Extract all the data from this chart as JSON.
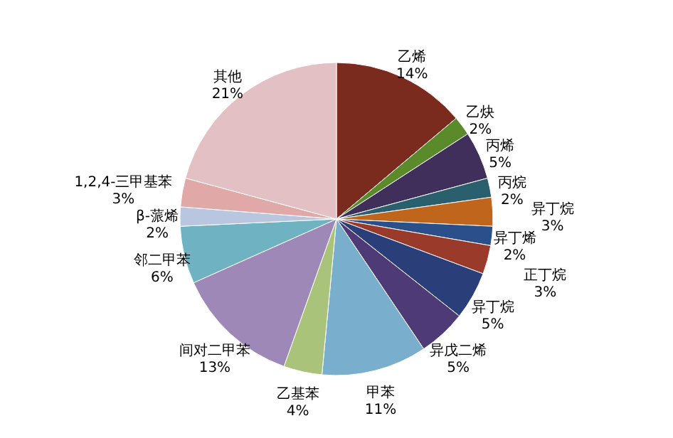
{
  "chart_data": {
    "type": "pie",
    "categories": [
      "乙烯",
      "乙炔",
      "丙烯",
      "丙烷",
      "异丁烷",
      "异丁烯",
      "正丁烷",
      "异丁烷",
      "异戊二烯",
      "甲苯",
      "乙基苯",
      "间对二甲苯",
      "邻二甲苯",
      "β-蒎烯",
      "1,2,4-三甲基苯",
      "其他"
    ],
    "values": [
      14,
      2,
      5,
      2,
      3,
      2,
      3,
      5,
      5,
      11,
      4,
      13,
      6,
      2,
      3,
      21
    ],
    "value_labels": [
      "14%",
      "2%",
      "5%",
      "2%",
      "3%",
      "2%",
      "3%",
      "5%",
      "5%",
      "11%",
      "4%",
      "13%",
      "6%",
      "2%",
      "3%",
      "21%"
    ],
    "colors": [
      "#7b2a1e",
      "#5a8a2a",
      "#3f2f5a",
      "#2a5f6e",
      "#c0651c",
      "#2a4f8a",
      "#9a3a2a",
      "#2a3f7a",
      "#4f3a78",
      "#7aaecd",
      "#a9c47a",
      "#9d88b8",
      "#6fb3c3",
      "#b9c6e0",
      "#e1a8a8",
      "#e3c0c3"
    ],
    "legend": false
  }
}
